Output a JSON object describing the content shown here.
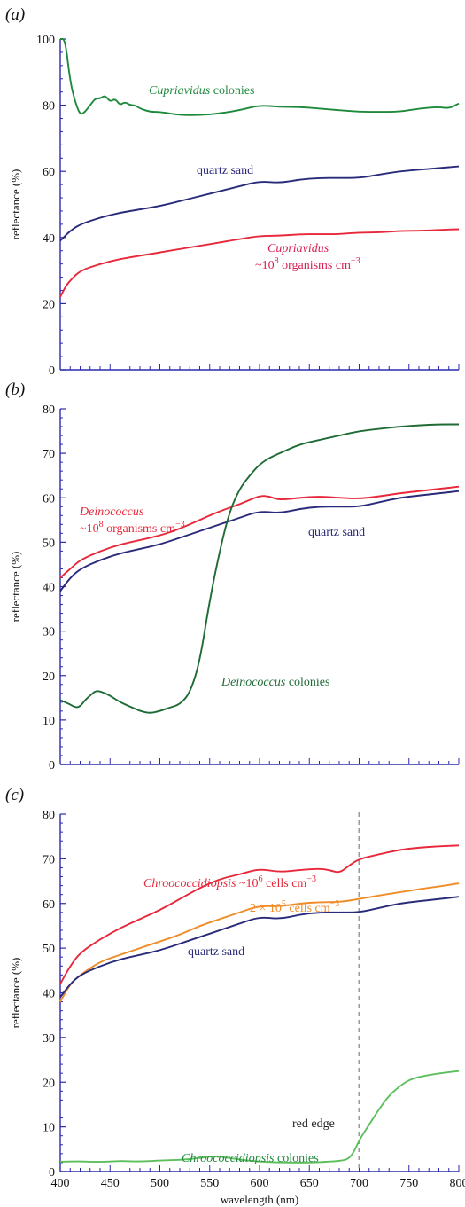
{
  "colors": {
    "axis": "#2b2bb0",
    "dark_green": "#1f6b35",
    "medium_green": "#1e8a3c",
    "light_green": "#5cbf5c",
    "navy": "#2a2a7a",
    "red": "#e8283a",
    "pink_red": "#d81e50",
    "orange": "#f08c28",
    "gray_dash": "#999999"
  },
  "chart_data": [
    {
      "panel": "(a)",
      "type": "line",
      "xlabel": "",
      "ylabel": "reflectance (%)",
      "xlim": [
        400,
        800
      ],
      "ylim": [
        0,
        100
      ],
      "yticks": [
        0,
        20,
        40,
        60,
        80,
        100
      ],
      "series": [
        {
          "key": "cupriavidus_colonies",
          "color": "#1e8a3c",
          "x": [
            400,
            405,
            410,
            415,
            420,
            425,
            430,
            435,
            440,
            445,
            450,
            455,
            460,
            465,
            470,
            475,
            480,
            490,
            500,
            520,
            540,
            560,
            580,
            600,
            620,
            640,
            660,
            680,
            700,
            720,
            740,
            760,
            780,
            790,
            800
          ],
          "y": [
            100,
            100,
            87,
            81,
            77,
            78,
            80,
            82,
            82,
            83,
            81,
            82,
            80,
            81,
            80,
            80,
            79,
            78,
            78,
            77,
            77,
            77.5,
            78.5,
            80,
            79.5,
            79.5,
            79,
            78.5,
            78,
            78,
            78,
            79,
            79.5,
            79,
            80.5
          ]
        },
        {
          "key": "quartz_sand_a",
          "color": "#2a2a7a",
          "x": [
            400,
            410,
            420,
            440,
            460,
            480,
            500,
            520,
            540,
            560,
            580,
            600,
            620,
            640,
            660,
            680,
            700,
            720,
            740,
            760,
            780,
            800
          ],
          "y": [
            39,
            42,
            44,
            46,
            47.5,
            48.5,
            49.5,
            51,
            52.5,
            54,
            55.5,
            57,
            56.5,
            57.5,
            58,
            58,
            58,
            59,
            60,
            60.5,
            61,
            61.5
          ]
        },
        {
          "key": "cupriavidus_1e8",
          "color": "#e8283a",
          "x": [
            400,
            405,
            410,
            420,
            440,
            460,
            480,
            500,
            520,
            540,
            560,
            580,
            600,
            620,
            640,
            660,
            680,
            700,
            720,
            740,
            760,
            780,
            800
          ],
          "y": [
            22,
            25,
            27,
            30,
            32,
            33.5,
            34.5,
            35.5,
            36.5,
            37.5,
            38.5,
            39.5,
            40.5,
            40.5,
            41,
            41,
            41,
            41.5,
            41.5,
            42,
            42,
            42.3,
            42.5
          ]
        }
      ],
      "annotations": {
        "cupriavidus_colonies": {
          "italic": "Cupriavidus",
          "rest": " colonies"
        },
        "quartz_sand": "quartz sand",
        "cupriavidus_label": "Cupriavidus",
        "cupriavidus_conc": {
          "prefix": "~10",
          "sup": "8",
          "middle": " organisms cm",
          "sup2": "−3"
        }
      }
    },
    {
      "panel": "(b)",
      "type": "line",
      "xlabel": "",
      "ylabel": "reflectance (%)",
      "xlim": [
        400,
        800
      ],
      "ylim": [
        0,
        80
      ],
      "yticks": [
        0,
        10,
        20,
        30,
        40,
        50,
        60,
        70,
        80
      ],
      "series": [
        {
          "key": "deinococcus_1e8",
          "color": "#e8283a",
          "x": [
            400,
            410,
            420,
            440,
            460,
            480,
            500,
            520,
            540,
            560,
            580,
            600,
            610,
            620,
            640,
            660,
            680,
            700,
            720,
            740,
            760,
            780,
            800
          ],
          "y": [
            42,
            44,
            46,
            48,
            49.5,
            50.5,
            51.5,
            53,
            55,
            57,
            58.5,
            60.5,
            60.3,
            59.5,
            60,
            60.3,
            60,
            59.8,
            60.3,
            61,
            61.5,
            62,
            62.5
          ]
        },
        {
          "key": "quartz_sand_b",
          "color": "#2a2a7a",
          "x": [
            400,
            410,
            420,
            440,
            460,
            480,
            500,
            520,
            540,
            560,
            580,
            600,
            620,
            640,
            660,
            680,
            700,
            720,
            740,
            760,
            780,
            800
          ],
          "y": [
            39,
            42,
            44,
            46,
            47.5,
            48.5,
            49.5,
            51,
            52.5,
            54,
            55.5,
            57,
            56.5,
            57.5,
            58,
            58,
            58,
            59,
            60,
            60.5,
            61,
            61.5
          ]
        },
        {
          "key": "deinococcus_colonies",
          "color": "#1f6b35",
          "x": [
            400,
            405,
            410,
            415,
            420,
            425,
            430,
            435,
            440,
            450,
            460,
            470,
            480,
            490,
            500,
            510,
            520,
            530,
            540,
            550,
            560,
            570,
            580,
            590,
            600,
            610,
            620,
            640,
            660,
            680,
            700,
            720,
            740,
            760,
            780,
            800
          ],
          "y": [
            14.5,
            14,
            13.5,
            12.8,
            13,
            14.5,
            15.5,
            16.5,
            16.5,
            15.5,
            14,
            13,
            12,
            11.5,
            12,
            12.8,
            13.5,
            16,
            23,
            37,
            48,
            57,
            62,
            65,
            67.5,
            69,
            70,
            72,
            73,
            74,
            75,
            75.5,
            76,
            76.3,
            76.5,
            76.5
          ]
        }
      ],
      "annotations": {
        "deinococcus_label": "Deinococcus",
        "deinococcus_conc": {
          "prefix": "~10",
          "sup": "8",
          "middle": " organisms cm",
          "sup2": "−3"
        },
        "quartz_sand": "quartz sand",
        "deinococcus_colonies": {
          "italic": "Deinococcus",
          "rest": " colonies"
        }
      }
    },
    {
      "panel": "(c)",
      "type": "line",
      "xlabel": "wavelength (nm)",
      "ylabel": "reflectance (%)",
      "xlim": [
        400,
        800
      ],
      "ylim": [
        0,
        80
      ],
      "yticks": [
        0,
        10,
        20,
        30,
        40,
        50,
        60,
        70,
        80
      ],
      "xticks": [
        400,
        450,
        500,
        550,
        600,
        650,
        700,
        750,
        800
      ],
      "series": [
        {
          "key": "chroococcidiopsis_1e6",
          "color": "#e8283a",
          "x": [
            400,
            410,
            420,
            440,
            460,
            480,
            500,
            520,
            540,
            560,
            580,
            600,
            620,
            640,
            660,
            670,
            680,
            690,
            700,
            720,
            740,
            760,
            780,
            800
          ],
          "y": [
            42,
            46,
            49,
            52,
            54.5,
            56.5,
            58.5,
            61,
            63.5,
            65.5,
            66.5,
            67.8,
            67,
            67.5,
            67.8,
            67.5,
            66.8,
            68.5,
            70,
            71,
            72,
            72.5,
            72.8,
            73
          ]
        },
        {
          "key": "chroococcidiopsis_2e5",
          "color": "#f08c28",
          "x": [
            400,
            410,
            420,
            440,
            460,
            480,
            500,
            520,
            540,
            560,
            580,
            600,
            620,
            640,
            660,
            680,
            700,
            720,
            740,
            760,
            780,
            800
          ],
          "y": [
            38,
            42,
            44,
            47,
            48.5,
            50,
            51.5,
            53,
            55,
            56.5,
            58,
            59.5,
            59.3,
            60,
            60.3,
            60.3,
            61,
            61.8,
            62.5,
            63.2,
            63.8,
            64.5
          ]
        },
        {
          "key": "quartz_sand_c",
          "color": "#2a2a7a",
          "x": [
            400,
            410,
            420,
            440,
            460,
            480,
            500,
            520,
            540,
            560,
            580,
            600,
            620,
            640,
            660,
            680,
            700,
            720,
            740,
            760,
            780,
            800
          ],
          "y": [
            39,
            42,
            44,
            46,
            47.5,
            48.5,
            49.5,
            51,
            52.5,
            54,
            55.5,
            57,
            56.5,
            57.5,
            58,
            58,
            58,
            59,
            60,
            60.5,
            61,
            61.5
          ]
        },
        {
          "key": "chroococcidiopsis_colonies",
          "color": "#5cbf5c",
          "x": [
            400,
            420,
            440,
            460,
            480,
            500,
            520,
            540,
            555,
            570,
            590,
            610,
            630,
            650,
            670,
            685,
            690,
            695,
            700,
            710,
            720,
            730,
            740,
            750,
            760,
            780,
            800
          ],
          "y": [
            2.2,
            2.3,
            2.1,
            2.4,
            2.2,
            2.5,
            2.6,
            3.0,
            3.5,
            3.0,
            2.4,
            2.1,
            2.0,
            2.0,
            2.2,
            2.5,
            3.0,
            4.5,
            7,
            10.5,
            14,
            17,
            19,
            20.5,
            21.2,
            22,
            22.5
          ]
        }
      ],
      "annotations": {
        "chroococcidiopsis_1e6": {
          "italic": "Chroococcidiopsis",
          "prefix": " ~10",
          "sup": "6",
          "middle": " cells cm",
          "sup2": "−3"
        },
        "chroococcidiopsis_2e5": {
          "prefix": "2 × 10",
          "sup": "5",
          "middle": " cells cm",
          "sup2": "−3"
        },
        "quartz_sand": "quartz sand",
        "red_edge": "red edge",
        "red_edge_x": 700,
        "chroococcidiopsis_colonies": {
          "italic": "Chroococcidiopsis",
          "rest": " colonies"
        }
      }
    }
  ]
}
